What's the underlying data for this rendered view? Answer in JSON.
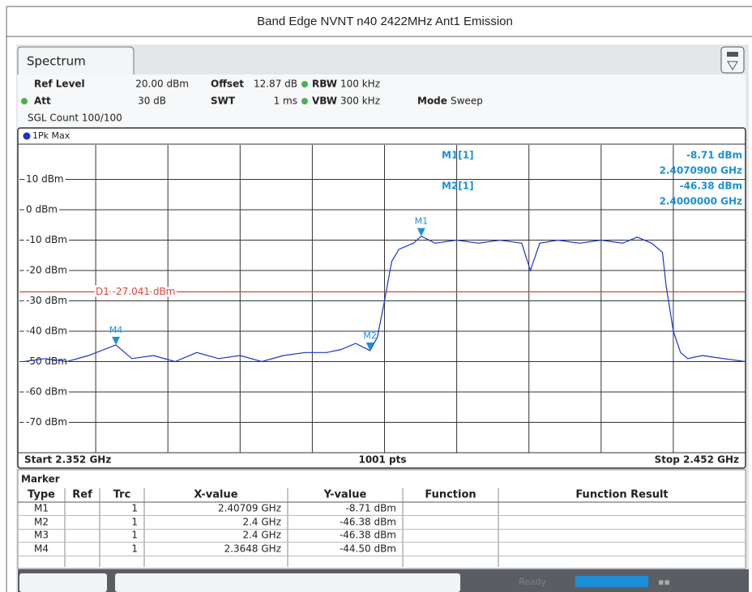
{
  "header": {
    "title": "Band Edge NVNT n40 2422MHz Ant1 Emission"
  },
  "tab": "Spectrum",
  "settings": {
    "ref_level_label": "Ref Level",
    "ref_level": "20.00 dBm",
    "offset_label": "Offset",
    "offset": "12.87 dB",
    "rbw_label": "RBW",
    "rbw": "100 kHz",
    "att_label": "Att",
    "att": "30 dB",
    "swt_label": "SWT",
    "swt": "1 ms",
    "vbw_label": "VBW",
    "vbw": "300 kHz",
    "mode_label": "Mode",
    "mode": "Sweep",
    "sgl_count": "SGL Count 100/100"
  },
  "trace_label": "1Pk Max",
  "readouts": [
    "M1[1]",
    "-8.71 dBm",
    "2.4070900 GHz",
    "M2[1]",
    "-46.38 dBm",
    "2.4000000 GHz"
  ],
  "footer": {
    "start": "Start 2.352 GHz",
    "points": "1001 pts",
    "stop": "Stop 2.452 GHz"
  },
  "chart_data": {
    "type": "line",
    "xlim": [
      2.352,
      2.452
    ],
    "ylim": [
      -80,
      20
    ],
    "yticks": [
      {
        "value": 10,
        "label": "10 dBm"
      },
      {
        "value": 0,
        "label": "0 dBm"
      },
      {
        "value": -10,
        "label": "-10 dBm"
      },
      {
        "value": -20,
        "label": "-20 dBm"
      },
      {
        "value": -30,
        "label": "-30 dBm"
      },
      {
        "value": -40,
        "label": "-40 dBm"
      },
      {
        "value": -50,
        "label": "-50 dBm"
      },
      {
        "value": -60,
        "label": "-60 dBm"
      },
      {
        "value": -70,
        "label": "-70 dBm"
      }
    ],
    "grid": true,
    "x": [
      2.352,
      2.355,
      2.358,
      2.361,
      2.3648,
      2.367,
      2.37,
      2.373,
      2.376,
      2.379,
      2.382,
      2.385,
      2.388,
      2.391,
      2.394,
      2.396,
      2.398,
      2.4,
      2.401,
      2.402,
      2.403,
      2.404,
      2.406,
      2.40709,
      2.409,
      2.412,
      2.415,
      2.418,
      2.421,
      2.4222,
      2.4235,
      2.426,
      2.429,
      2.432,
      2.435,
      2.437,
      2.439,
      2.4405,
      2.441,
      2.442,
      2.443,
      2.444,
      2.446,
      2.449,
      2.452
    ],
    "series": [
      {
        "name": "1Pk Max",
        "color": "#1a35c8",
        "values": [
          -50,
          -49,
          -50,
          -48,
          -44.5,
          -49,
          -48,
          -50,
          -47,
          -49,
          -48,
          -50,
          -48,
          -47,
          -47,
          -46,
          -44,
          -46.38,
          -42,
          -30,
          -17,
          -13,
          -11,
          -8.71,
          -11,
          -10,
          -11,
          -10,
          -11,
          -20,
          -11,
          -10,
          -11,
          -10,
          -11,
          -9,
          -11,
          -14,
          -25,
          -40,
          -47,
          -49,
          -48,
          -49,
          -50
        ]
      }
    ],
    "threshold": {
      "label": "D1 -27.041 dBm",
      "value": -27.041,
      "color": "#e0443a"
    },
    "markers": [
      {
        "label": "M1",
        "x": 2.40709,
        "y": -8.71
      },
      {
        "label": "M2",
        "x": 2.4,
        "y": -46.38
      },
      {
        "label": "M4",
        "x": 2.3648,
        "y": -44.5
      }
    ],
    "marker_color": "#1e8fd6"
  },
  "table": {
    "title": "Marker",
    "columns": [
      "Type",
      "Ref",
      "Trc",
      "X-value",
      "Y-value",
      "Function",
      "Function Result"
    ],
    "rows": [
      [
        "M1",
        "",
        "1",
        "2.40709 GHz",
        "-8.71 dBm",
        "",
        ""
      ],
      [
        "M2",
        "",
        "1",
        "2.4 GHz",
        "-46.38 dBm",
        "",
        ""
      ],
      [
        "M3",
        "",
        "1",
        "2.4 GHz",
        "-46.38 dBm",
        "",
        ""
      ],
      [
        "M4",
        "",
        "1",
        "2.3648 GHz",
        "-44.50 dBm",
        "",
        ""
      ]
    ]
  },
  "status": "Ready"
}
